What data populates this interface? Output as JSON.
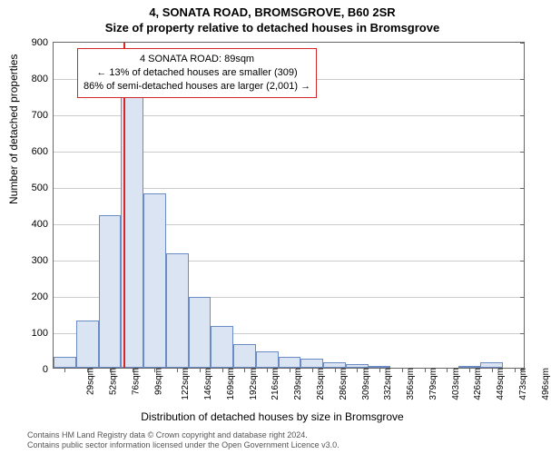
{
  "titles": {
    "main": "4, SONATA ROAD, BROMSGROVE, B60 2SR",
    "sub": "Size of property relative to detached houses in Bromsgrove"
  },
  "chart": {
    "type": "histogram",
    "x_categories": [
      "29sqm",
      "52sqm",
      "76sqm",
      "99sqm",
      "122sqm",
      "146sqm",
      "169sqm",
      "192sqm",
      "216sqm",
      "239sqm",
      "263sqm",
      "286sqm",
      "309sqm",
      "332sqm",
      "356sqm",
      "379sqm",
      "403sqm",
      "426sqm",
      "449sqm",
      "473sqm",
      "496sqm"
    ],
    "values": [
      30,
      130,
      420,
      770,
      480,
      315,
      195,
      115,
      65,
      45,
      30,
      25,
      15,
      10,
      5,
      0,
      0,
      0,
      5,
      15,
      0
    ],
    "bar_fill": "#dbe4f3",
    "bar_stroke": "#6a8bc4",
    "background": "#ffffff",
    "grid_color": "#cccccc",
    "axis_color": "#666666",
    "ylim": [
      0,
      900
    ],
    "ytick_step": 100,
    "ylabel": "Number of detached properties",
    "xlabel": "Distribution of detached houses by size in Bromsgrove",
    "marker": {
      "index": 2.6,
      "color": "#d62728"
    },
    "annotation": {
      "lines": [
        "4 SONATA ROAD: 89sqm",
        "← 13% of detached houses are smaller (309)",
        "86% of semi-detached houses are larger (2,001) →"
      ],
      "border_color": "#d62728",
      "fontsize": 11
    },
    "label_fontsize": 12,
    "tick_fontsize": 10
  },
  "footer": {
    "line1": "Contains HM Land Registry data © Crown copyright and database right 2024.",
    "line2": "Contains public sector information licensed under the Open Government Licence v3.0."
  }
}
